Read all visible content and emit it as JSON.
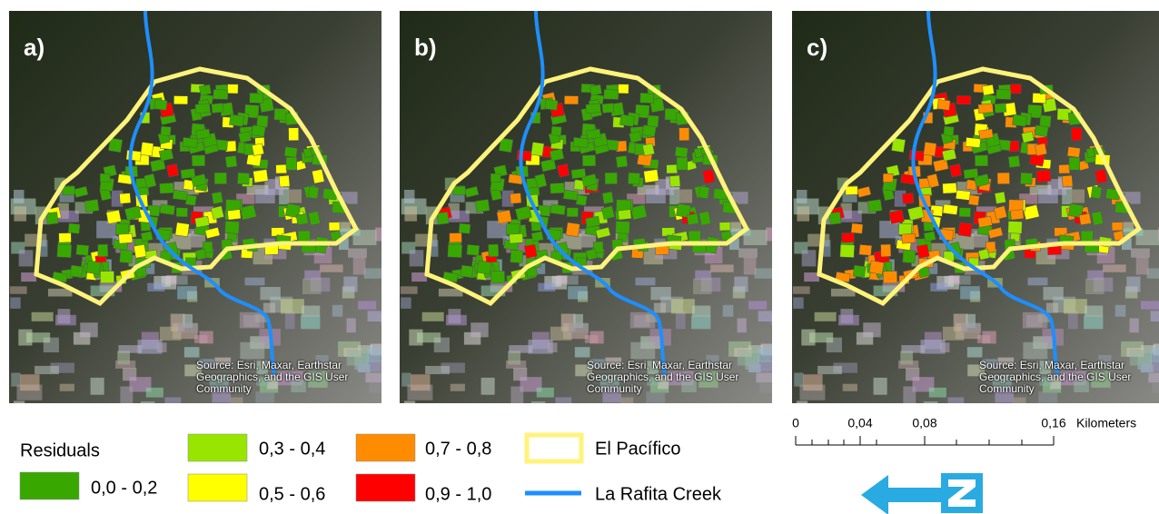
{
  "panels": [
    {
      "label": "a)",
      "attribution": "Source: Esri, Maxar, Earthstar Geographics, and the GIS User Community"
    },
    {
      "label": "b)",
      "attribution": "Source: Esri, Maxar, Earthstar Geographics, and the GIS User Community"
    },
    {
      "label": "c)",
      "attribution": "Source: Esri, Maxar, Earthstar Geographics, and the GIS User Community"
    }
  ],
  "legend": {
    "title": "Residuals",
    "classes": [
      {
        "label": "0,0 - 0,2",
        "color": "#38a800"
      },
      {
        "label": "0,3 - 0,4",
        "color": "#98e600"
      },
      {
        "label": "0,5 - 0,6",
        "color": "#ffff00"
      },
      {
        "label": "0,7 - 0,8",
        "color": "#ff8c00"
      },
      {
        "label": "0,9 - 1,0",
        "color": "#ff0000"
      }
    ],
    "boundary": {
      "label": "El Pacífico",
      "color": "#fff37a"
    },
    "creek": {
      "label": "La Rafita Creek",
      "color": "#1e8fff"
    }
  },
  "scale_bar": {
    "ticks": [
      0,
      {
        "value": 0.04,
        "label": "0,04"
      },
      {
        "value": 0.08,
        "label": "0,08"
      },
      {
        "value": 0.16,
        "label": "0,16"
      }
    ],
    "unit": "Kilometers"
  }
}
